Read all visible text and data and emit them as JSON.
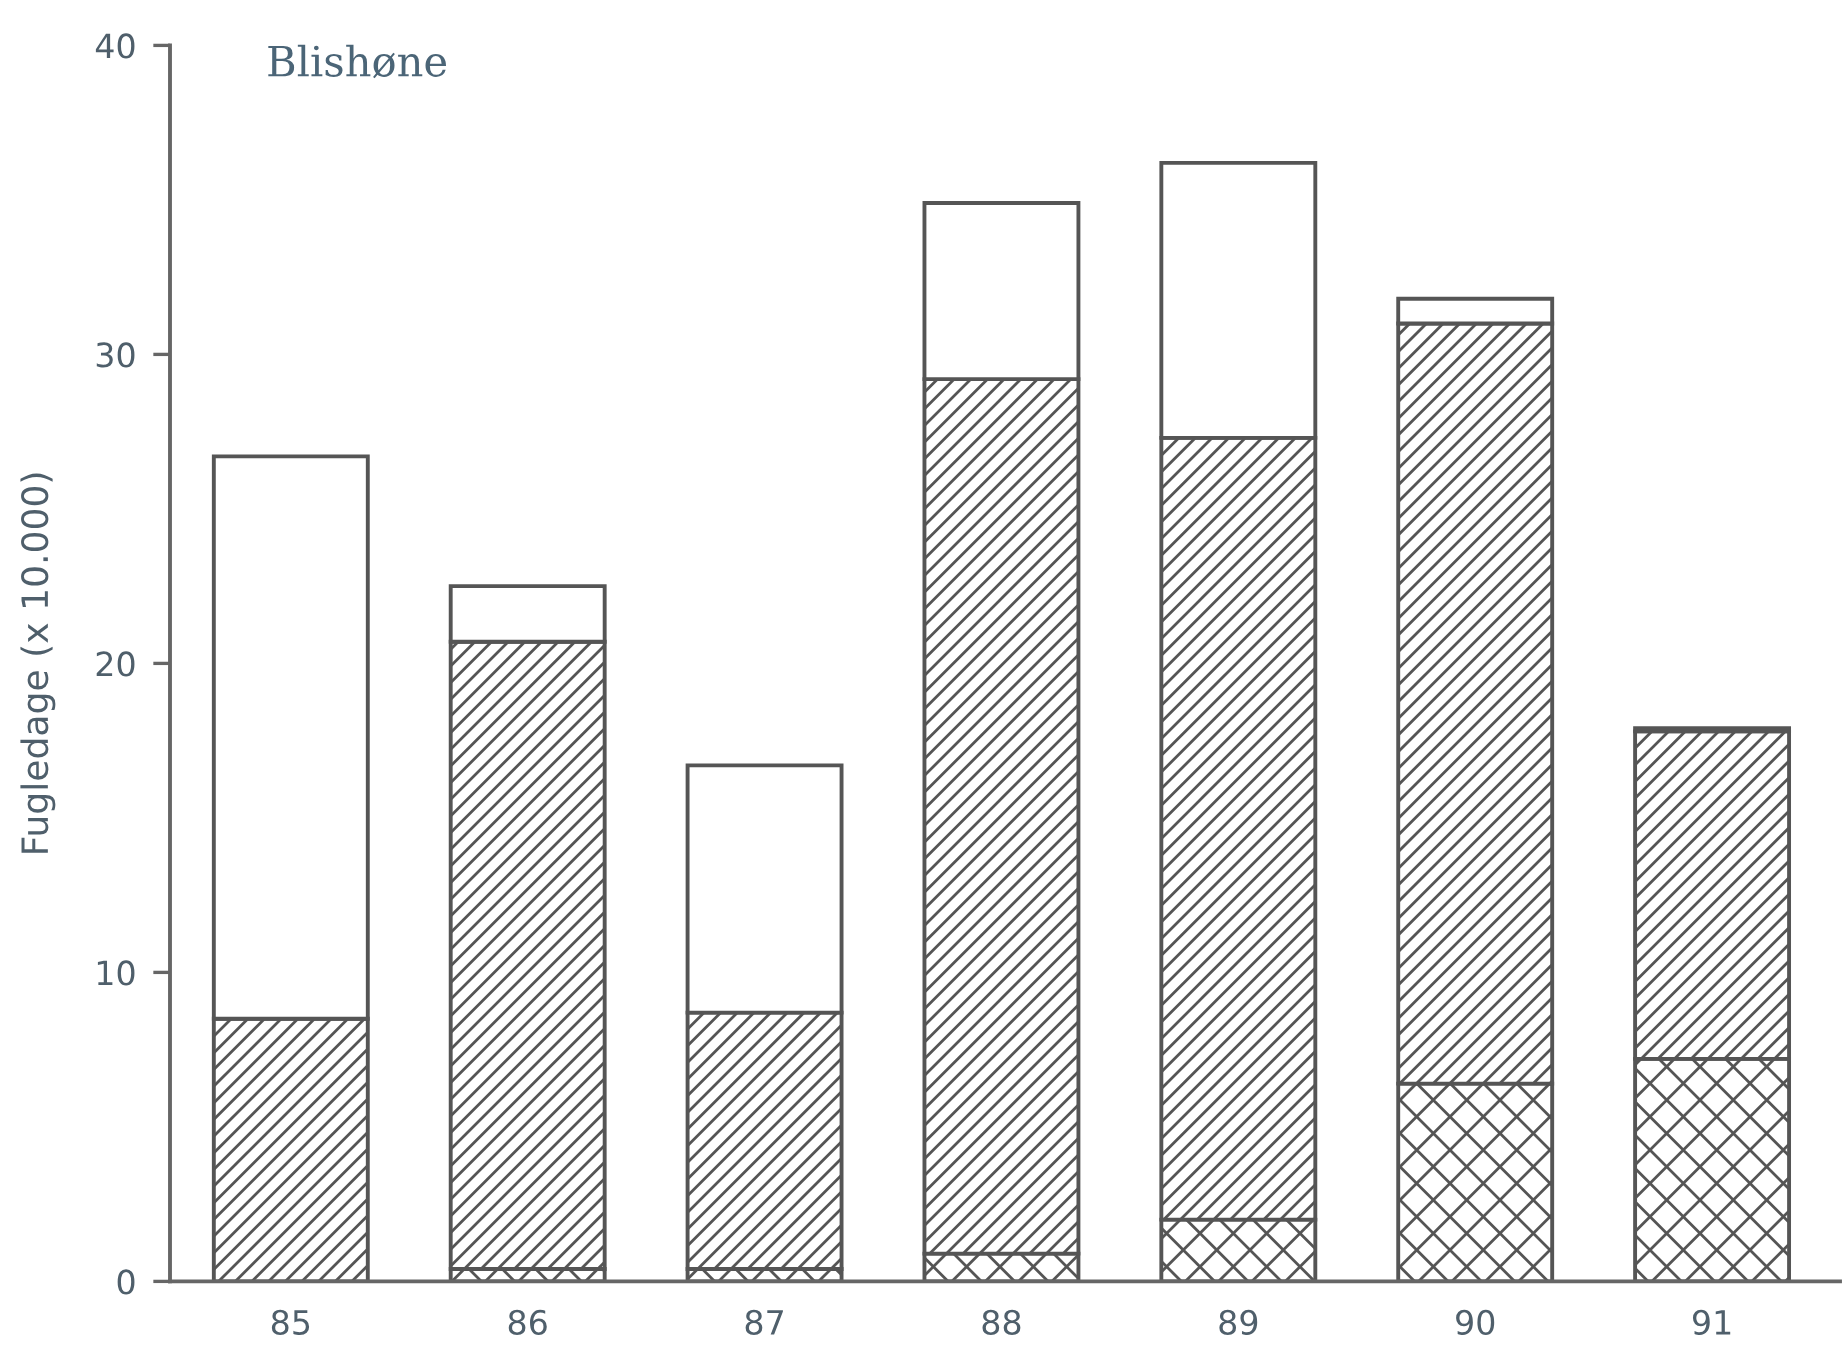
{
  "chart_data": {
    "type": "bar",
    "title": "Blishøne",
    "ylabel": "Fugledage (x 10.000)",
    "categories": [
      "85",
      "86",
      "87",
      "88",
      "89",
      "90",
      "91"
    ],
    "stacked": true,
    "series": [
      {
        "color": "#555555",
        "values": [
          0,
          0.4,
          0.4,
          0.9,
          2.0,
          6.4,
          7.2
        ]
      },
      {
        "color": "#555555",
        "values": [
          8.5,
          20.3,
          8.3,
          28.3,
          25.3,
          24.6,
          10.6
        ]
      },
      {
        "color": "#555555",
        "values": [
          18.2,
          1.8,
          8.0,
          5.7,
          8.9,
          0.8,
          0.1
        ]
      }
    ],
    "ylim": [
      0,
      40
    ],
    "yticks": [
      0,
      10,
      20,
      30,
      40
    ]
  }
}
